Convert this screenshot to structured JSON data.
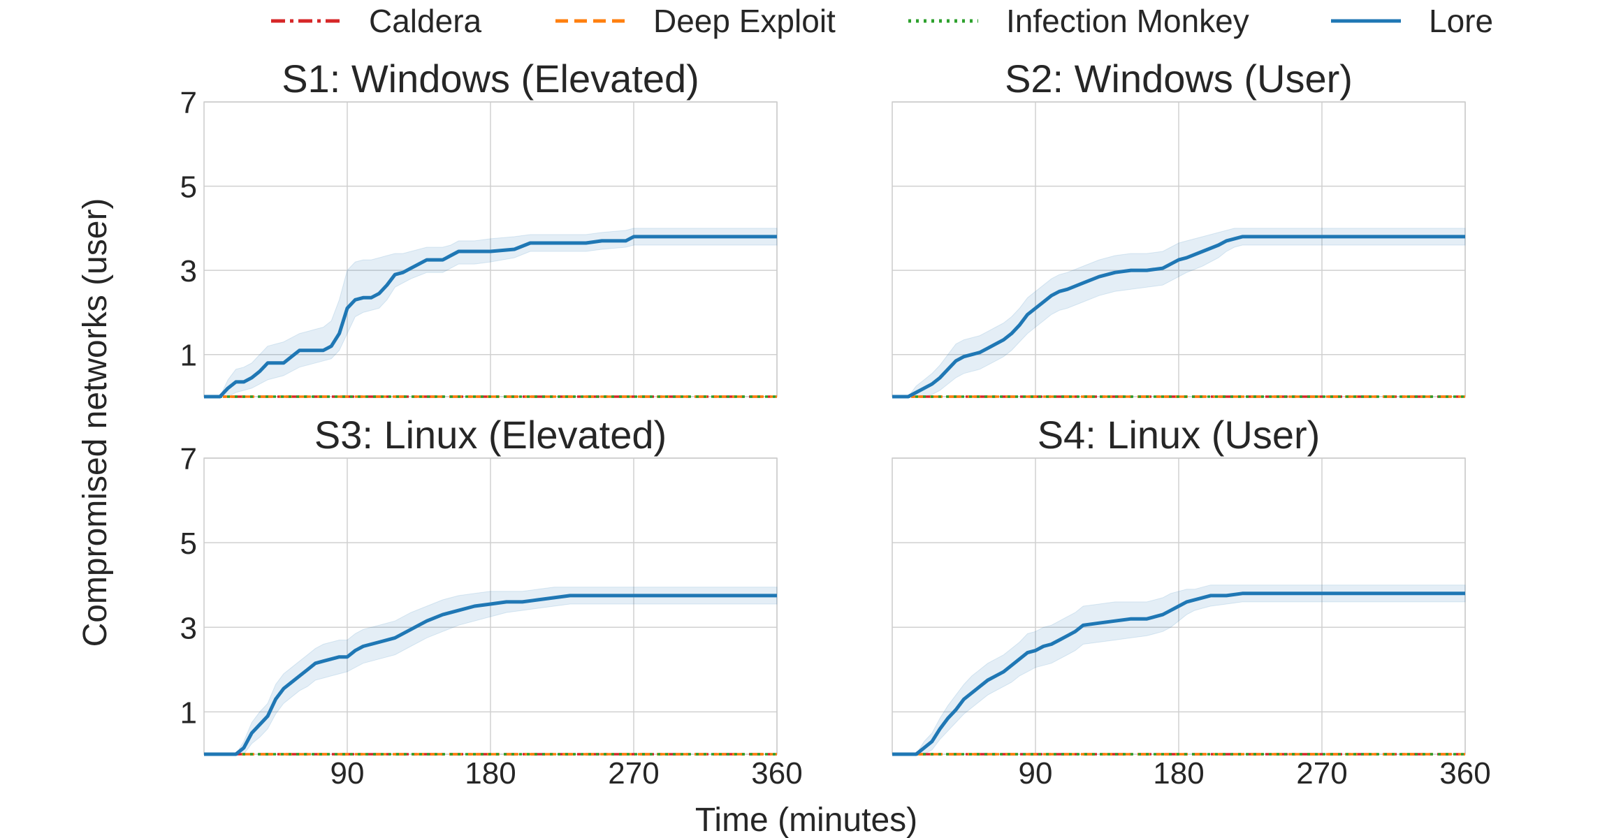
{
  "figure": {
    "ylabel": "Compromised networks (user)",
    "xlabel": "Time (minutes)"
  },
  "legend": {
    "placement": "top-center",
    "entries": [
      {
        "name": "Caldera",
        "color": "#d62728",
        "dash": "dash-dot"
      },
      {
        "name": "Deep Exploit",
        "color": "#ff7f0e",
        "dash": "dashed"
      },
      {
        "name": "Infection Monkey",
        "color": "#2ca02c",
        "dash": "dotted"
      },
      {
        "name": "Lore",
        "color": "#1f77b4",
        "dash": "solid"
      }
    ]
  },
  "chart_data": [
    {
      "type": "line",
      "title": "S1: Windows (Elevated)",
      "xlim": [
        0,
        360
      ],
      "ylim": [
        0,
        7
      ],
      "xticks": [
        90,
        180,
        270,
        360
      ],
      "yticks": [
        1,
        3,
        5,
        7
      ],
      "show_xticks": false,
      "show_yticks": true,
      "grid": true,
      "series": [
        {
          "name": "Lore",
          "color": "#1f77b4",
          "x": [
            0,
            10,
            15,
            20,
            25,
            30,
            35,
            40,
            45,
            50,
            55,
            60,
            65,
            70,
            75,
            80,
            85,
            90,
            95,
            100,
            105,
            110,
            115,
            120,
            125,
            130,
            140,
            150,
            155,
            160,
            170,
            180,
            195,
            205,
            220,
            240,
            250,
            265,
            270,
            280,
            300,
            330,
            360
          ],
          "y": [
            0,
            0,
            0.2,
            0.35,
            0.35,
            0.45,
            0.6,
            0.8,
            0.8,
            0.8,
            0.95,
            1.1,
            1.1,
            1.1,
            1.1,
            1.2,
            1.5,
            2.1,
            2.3,
            2.35,
            2.35,
            2.45,
            2.65,
            2.9,
            2.95,
            3.05,
            3.25,
            3.25,
            3.35,
            3.45,
            3.45,
            3.45,
            3.5,
            3.65,
            3.65,
            3.65,
            3.7,
            3.7,
            3.8,
            3.8,
            3.8,
            3.8,
            3.8
          ],
          "lower": [
            0,
            0,
            0,
            0.1,
            0.15,
            0.2,
            0.3,
            0.4,
            0.45,
            0.5,
            0.6,
            0.7,
            0.75,
            0.8,
            0.85,
            0.9,
            1.1,
            1.5,
            1.9,
            2.0,
            2.05,
            2.1,
            2.3,
            2.6,
            2.7,
            2.8,
            2.95,
            2.95,
            3.05,
            3.15,
            3.15,
            3.2,
            3.3,
            3.45,
            3.45,
            3.45,
            3.5,
            3.55,
            3.6,
            3.6,
            3.6,
            3.6,
            3.6
          ],
          "upper": [
            0,
            0,
            0.4,
            0.65,
            0.7,
            0.8,
            1.0,
            1.2,
            1.25,
            1.3,
            1.4,
            1.5,
            1.55,
            1.6,
            1.65,
            1.8,
            2.3,
            3.0,
            3.2,
            3.25,
            3.25,
            3.3,
            3.35,
            3.4,
            3.4,
            3.45,
            3.55,
            3.55,
            3.6,
            3.7,
            3.7,
            3.75,
            3.8,
            3.85,
            3.85,
            3.85,
            3.9,
            3.95,
            4.0,
            4.0,
            4.0,
            4.0,
            4.0
          ]
        },
        {
          "name": "Caldera",
          "color": "#d62728",
          "x": [
            0,
            360
          ],
          "y": [
            0,
            0
          ]
        },
        {
          "name": "Deep Exploit",
          "color": "#ff7f0e",
          "x": [
            0,
            360
          ],
          "y": [
            0,
            0
          ]
        },
        {
          "name": "Infection Monkey",
          "color": "#2ca02c",
          "x": [
            0,
            360
          ],
          "y": [
            0,
            0
          ]
        }
      ]
    },
    {
      "type": "line",
      "title": "S2: Windows (User)",
      "xlim": [
        0,
        360
      ],
      "ylim": [
        0,
        7
      ],
      "xticks": [
        90,
        180,
        270,
        360
      ],
      "yticks": [
        1,
        3,
        5,
        7
      ],
      "show_xticks": false,
      "show_yticks": false,
      "grid": true,
      "series": [
        {
          "name": "Lore",
          "color": "#1f77b4",
          "x": [
            0,
            10,
            15,
            20,
            25,
            30,
            35,
            40,
            45,
            50,
            55,
            60,
            65,
            70,
            75,
            80,
            85,
            90,
            95,
            100,
            105,
            110,
            120,
            130,
            140,
            150,
            160,
            170,
            175,
            180,
            185,
            195,
            205,
            210,
            215,
            220,
            240,
            270,
            300,
            330,
            360
          ],
          "y": [
            0,
            0,
            0.1,
            0.2,
            0.3,
            0.45,
            0.65,
            0.85,
            0.95,
            1.0,
            1.05,
            1.15,
            1.25,
            1.35,
            1.5,
            1.7,
            1.95,
            2.1,
            2.25,
            2.4,
            2.5,
            2.55,
            2.7,
            2.85,
            2.95,
            3.0,
            3.0,
            3.05,
            3.15,
            3.25,
            3.3,
            3.45,
            3.6,
            3.7,
            3.75,
            3.8,
            3.8,
            3.8,
            3.8,
            3.8,
            3.8
          ],
          "lower": [
            0,
            0,
            0,
            0,
            0.05,
            0.15,
            0.3,
            0.45,
            0.55,
            0.6,
            0.65,
            0.75,
            0.85,
            0.95,
            1.1,
            1.3,
            1.5,
            1.65,
            1.8,
            1.95,
            2.05,
            2.1,
            2.25,
            2.4,
            2.5,
            2.55,
            2.6,
            2.65,
            2.75,
            2.85,
            2.95,
            3.1,
            3.3,
            3.45,
            3.55,
            3.6,
            3.6,
            3.6,
            3.6,
            3.6,
            3.6
          ],
          "upper": [
            0,
            0,
            0.25,
            0.4,
            0.55,
            0.75,
            1.0,
            1.25,
            1.35,
            1.4,
            1.45,
            1.55,
            1.65,
            1.75,
            1.9,
            2.1,
            2.35,
            2.5,
            2.65,
            2.8,
            2.9,
            2.95,
            3.1,
            3.25,
            3.35,
            3.4,
            3.4,
            3.45,
            3.55,
            3.65,
            3.7,
            3.8,
            3.9,
            3.95,
            4.0,
            4.0,
            4.0,
            4.0,
            4.0,
            4.0,
            4.0
          ]
        },
        {
          "name": "Caldera",
          "color": "#d62728",
          "x": [
            0,
            360
          ],
          "y": [
            0,
            0
          ]
        },
        {
          "name": "Deep Exploit",
          "color": "#ff7f0e",
          "x": [
            0,
            360
          ],
          "y": [
            0,
            0
          ]
        },
        {
          "name": "Infection Monkey",
          "color": "#2ca02c",
          "x": [
            0,
            360
          ],
          "y": [
            0,
            0
          ]
        }
      ]
    },
    {
      "type": "line",
      "title": "S3: Linux (Elevated)",
      "xlim": [
        0,
        360
      ],
      "ylim": [
        0,
        7
      ],
      "xticks": [
        90,
        180,
        270,
        360
      ],
      "yticks": [
        1,
        3,
        5,
        7
      ],
      "show_xticks": true,
      "show_yticks": true,
      "grid": true,
      "series": [
        {
          "name": "Lore",
          "color": "#1f77b4",
          "x": [
            0,
            20,
            25,
            30,
            35,
            40,
            45,
            50,
            55,
            60,
            65,
            70,
            75,
            80,
            85,
            90,
            95,
            100,
            110,
            120,
            130,
            140,
            150,
            160,
            170,
            180,
            190,
            200,
            210,
            220,
            230,
            250,
            270,
            300,
            330,
            360
          ],
          "y": [
            0,
            0,
            0.15,
            0.5,
            0.7,
            0.9,
            1.3,
            1.55,
            1.7,
            1.85,
            2.0,
            2.15,
            2.2,
            2.25,
            2.3,
            2.3,
            2.45,
            2.55,
            2.65,
            2.75,
            2.95,
            3.15,
            3.3,
            3.4,
            3.5,
            3.55,
            3.6,
            3.6,
            3.65,
            3.7,
            3.75,
            3.75,
            3.75,
            3.75,
            3.75,
            3.75
          ],
          "lower": [
            0,
            0,
            0,
            0.25,
            0.4,
            0.6,
            0.95,
            1.2,
            1.35,
            1.5,
            1.6,
            1.75,
            1.8,
            1.85,
            1.9,
            1.95,
            2.05,
            2.15,
            2.25,
            2.35,
            2.55,
            2.75,
            2.9,
            3.05,
            3.15,
            3.25,
            3.35,
            3.4,
            3.45,
            3.5,
            3.55,
            3.55,
            3.55,
            3.55,
            3.55,
            3.55
          ],
          "upper": [
            0,
            0,
            0.3,
            0.75,
            1.0,
            1.2,
            1.65,
            1.9,
            2.05,
            2.2,
            2.35,
            2.5,
            2.6,
            2.65,
            2.7,
            2.7,
            2.85,
            2.95,
            3.05,
            3.15,
            3.35,
            3.5,
            3.65,
            3.75,
            3.8,
            3.85,
            3.85,
            3.85,
            3.9,
            3.95,
            3.95,
            3.95,
            3.95,
            3.95,
            3.95,
            3.95
          ]
        },
        {
          "name": "Caldera",
          "color": "#d62728",
          "x": [
            0,
            360
          ],
          "y": [
            0,
            0
          ]
        },
        {
          "name": "Deep Exploit",
          "color": "#ff7f0e",
          "x": [
            0,
            360
          ],
          "y": [
            0,
            0
          ]
        },
        {
          "name": "Infection Monkey",
          "color": "#2ca02c",
          "x": [
            0,
            360
          ],
          "y": [
            0,
            0
          ]
        }
      ]
    },
    {
      "type": "line",
      "title": "S4: Linux (User)",
      "xlim": [
        0,
        360
      ],
      "ylim": [
        0,
        7
      ],
      "xticks": [
        90,
        180,
        270,
        360
      ],
      "yticks": [
        1,
        3,
        5,
        7
      ],
      "show_xticks": true,
      "show_yticks": false,
      "grid": true,
      "series": [
        {
          "name": "Lore",
          "color": "#1f77b4",
          "x": [
            0,
            15,
            20,
            25,
            30,
            35,
            40,
            45,
            50,
            55,
            60,
            65,
            70,
            75,
            80,
            85,
            90,
            95,
            100,
            105,
            110,
            115,
            120,
            130,
            140,
            150,
            160,
            170,
            175,
            180,
            185,
            190,
            195,
            200,
            210,
            220,
            240,
            270,
            300,
            330,
            360
          ],
          "y": [
            0,
            0,
            0.15,
            0.3,
            0.6,
            0.85,
            1.05,
            1.3,
            1.45,
            1.6,
            1.75,
            1.85,
            1.95,
            2.1,
            2.25,
            2.4,
            2.45,
            2.55,
            2.6,
            2.7,
            2.8,
            2.9,
            3.05,
            3.1,
            3.15,
            3.2,
            3.2,
            3.3,
            3.4,
            3.5,
            3.6,
            3.65,
            3.7,
            3.75,
            3.75,
            3.8,
            3.8,
            3.8,
            3.8,
            3.8,
            3.8
          ],
          "lower": [
            0,
            0,
            0,
            0.1,
            0.35,
            0.55,
            0.75,
            0.95,
            1.1,
            1.25,
            1.4,
            1.5,
            1.6,
            1.7,
            1.85,
            1.95,
            2.05,
            2.1,
            2.15,
            2.25,
            2.35,
            2.45,
            2.6,
            2.65,
            2.7,
            2.75,
            2.8,
            2.9,
            3.0,
            3.15,
            3.3,
            3.4,
            3.45,
            3.5,
            3.55,
            3.6,
            3.6,
            3.6,
            3.6,
            3.6,
            3.6
          ],
          "upper": [
            0,
            0,
            0.3,
            0.5,
            0.85,
            1.15,
            1.4,
            1.65,
            1.85,
            2.0,
            2.15,
            2.25,
            2.35,
            2.5,
            2.65,
            2.85,
            2.9,
            3.0,
            3.05,
            3.15,
            3.25,
            3.35,
            3.5,
            3.55,
            3.6,
            3.6,
            3.6,
            3.7,
            3.8,
            3.85,
            3.9,
            3.9,
            3.95,
            4.0,
            4.0,
            4.0,
            4.0,
            4.0,
            4.0,
            4.0,
            4.0
          ]
        },
        {
          "name": "Caldera",
          "color": "#d62728",
          "x": [
            0,
            360
          ],
          "y": [
            0,
            0
          ]
        },
        {
          "name": "Deep Exploit",
          "color": "#ff7f0e",
          "x": [
            0,
            360
          ],
          "y": [
            0,
            0
          ]
        },
        {
          "name": "Infection Monkey",
          "color": "#2ca02c",
          "x": [
            0,
            360
          ],
          "y": [
            0,
            0
          ]
        }
      ]
    }
  ]
}
